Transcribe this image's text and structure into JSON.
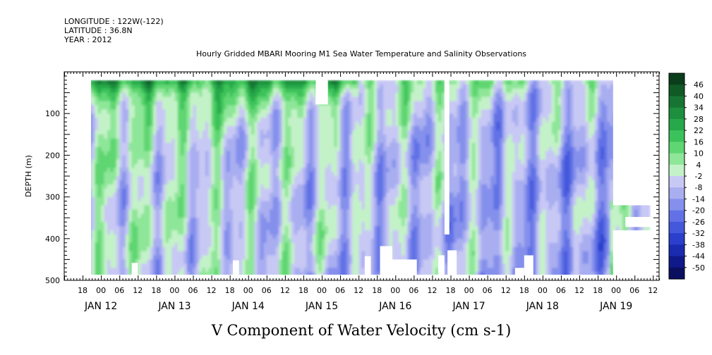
{
  "header": {
    "longitude": "LONGITUDE : 122W(-122)",
    "latitude": "LATITUDE : 36.8N",
    "year": "YEAR : 2012"
  },
  "chart_data": {
    "type": "heatmap",
    "title": "Hourly Gridded MBARI Mooring M1 Sea Water Temperature and Salinity Observations",
    "xlabel": "V Component of Water Velocity (cm s-1)",
    "ylabel": "DEPTH (m)",
    "y_axis": {
      "range": [
        0,
        500
      ],
      "inverted": true,
      "ticks": [
        100,
        200,
        300,
        400,
        500
      ],
      "tick_labels": [
        "100",
        "200",
        "300",
        "400",
        "500"
      ]
    },
    "x_axis": {
      "range_hours": [
        0,
        194
      ],
      "hour_ticks": [
        {
          "h": 6,
          "label": "18"
        },
        {
          "h": 12,
          "label": "00"
        },
        {
          "h": 18,
          "label": "06"
        },
        {
          "h": 24,
          "label": "12"
        },
        {
          "h": 30,
          "label": "18"
        },
        {
          "h": 36,
          "label": "00"
        },
        {
          "h": 42,
          "label": "06"
        },
        {
          "h": 48,
          "label": "12"
        },
        {
          "h": 54,
          "label": "18"
        },
        {
          "h": 60,
          "label": "00"
        },
        {
          "h": 66,
          "label": "06"
        },
        {
          "h": 72,
          "label": "12"
        },
        {
          "h": 78,
          "label": "18"
        },
        {
          "h": 84,
          "label": "00"
        },
        {
          "h": 90,
          "label": "06"
        },
        {
          "h": 96,
          "label": "12"
        },
        {
          "h": 102,
          "label": "18"
        },
        {
          "h": 108,
          "label": "00"
        },
        {
          "h": 114,
          "label": "06"
        },
        {
          "h": 120,
          "label": "12"
        },
        {
          "h": 126,
          "label": "18"
        },
        {
          "h": 132,
          "label": "00"
        },
        {
          "h": 138,
          "label": "06"
        },
        {
          "h": 144,
          "label": "12"
        },
        {
          "h": 150,
          "label": "18"
        },
        {
          "h": 156,
          "label": "00"
        },
        {
          "h": 162,
          "label": "06"
        },
        {
          "h": 168,
          "label": "12"
        },
        {
          "h": 174,
          "label": "18"
        },
        {
          "h": 180,
          "label": "00"
        },
        {
          "h": 186,
          "label": "06"
        },
        {
          "h": 192,
          "label": "12"
        }
      ],
      "day_labels": [
        {
          "h": 12,
          "label": "JAN 12"
        },
        {
          "h": 36,
          "label": "JAN 13"
        },
        {
          "h": 60,
          "label": "JAN 14"
        },
        {
          "h": 84,
          "label": "JAN 15"
        },
        {
          "h": 108,
          "label": "JAN 16"
        },
        {
          "h": 132,
          "label": "JAN 17"
        },
        {
          "h": 156,
          "label": "JAN 18"
        },
        {
          "h": 180,
          "label": "JAN 19"
        }
      ]
    },
    "colorbar": {
      "labels": [
        "46",
        "40",
        "34",
        "28",
        "22",
        "16",
        "10",
        "4",
        "-2",
        "-8",
        "-14",
        "-20",
        "-26",
        "-32",
        "-38",
        "-44",
        "-50"
      ],
      "colors": [
        "#0a3d1a",
        "#105a26",
        "#167532",
        "#1d8f3e",
        "#27a84a",
        "#3cc25a",
        "#5fd672",
        "#8ee699",
        "#c4f2c8",
        "#c8c8f5",
        "#a8aef0",
        "#8590ec",
        "#6272e6",
        "#4458db",
        "#2a3fcc",
        "#1a2bb0",
        "#10198a",
        "#0a0f60"
      ]
    }
  }
}
